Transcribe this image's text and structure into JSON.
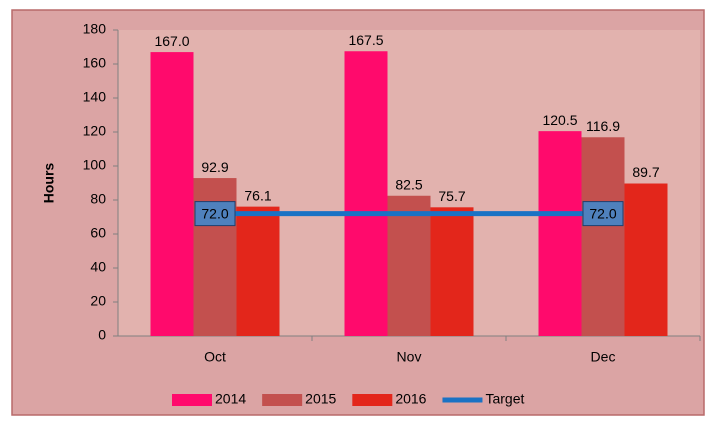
{
  "chart_data": {
    "type": "bar",
    "y_label": "Hours",
    "categories": [
      "Oct",
      "Nov",
      "Dec"
    ],
    "series": [
      {
        "name": "2014",
        "color": "#ff0a6c",
        "values": [
          167,
          167.5,
          120.5
        ],
        "value_labels": [
          "167.0",
          "167.5",
          "120.5"
        ]
      },
      {
        "name": "2015",
        "color": "#c3504e",
        "values": [
          92.9,
          82.5,
          116.9
        ]
      },
      {
        "name": "2016",
        "color": "#e3261b",
        "values": [
          76.1,
          75.7,
          89.7
        ]
      },
      {
        "name": "Target",
        "type": "line",
        "color": "#1a72c4",
        "values": [
          72,
          72,
          72
        ],
        "value_labels": [
          "72.0",
          null,
          "72.0"
        ]
      }
    ],
    "ylim": [
      0,
      180
    ],
    "yticks": [
      0,
      20,
      40,
      60,
      80,
      100,
      120,
      140,
      160,
      180
    ],
    "legend": "bottom"
  }
}
